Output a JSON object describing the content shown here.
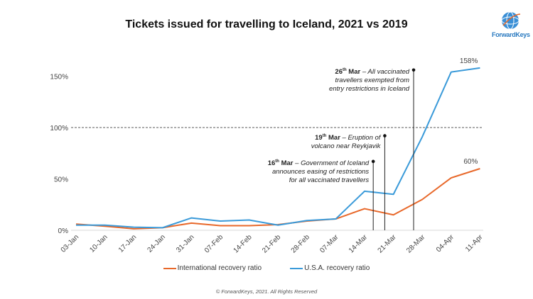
{
  "chart_data": {
    "type": "line",
    "title": "Tickets issued for travelling to Iceland, 2021 vs 2019",
    "xlabel": "",
    "ylabel": "",
    "ylim": [
      0,
      160
    ],
    "yticks": [
      "0%",
      "50%",
      "100%",
      "150%"
    ],
    "ytick_values": [
      0,
      50,
      100,
      150
    ],
    "reference_line": {
      "value": 100,
      "style": "dashed"
    },
    "categories": [
      "03-Jan",
      "10-Jan",
      "17-Jan",
      "24-Jan",
      "31-Jan",
      "07-Feb",
      "14-Feb",
      "21-Feb",
      "28-Feb",
      "07-Mar",
      "14-Mar",
      "21-Mar",
      "28-Mar",
      "04-Apr",
      "11-Apr"
    ],
    "series": [
      {
        "name": "International recovery ratio",
        "color": "#e8682a",
        "values": [
          6,
          4,
          1.5,
          2.5,
          7,
          4.5,
          4.5,
          5.5,
          9,
          11,
          21,
          15,
          30,
          51,
          60
        ],
        "end_label": "60%"
      },
      {
        "name": "U.S.A. recovery ratio",
        "color": "#3a9ad9",
        "values": [
          5,
          5,
          3,
          2.5,
          12,
          9,
          10,
          5,
          9.5,
          11,
          38,
          35,
          91,
          154,
          158
        ],
        "end_label": "158%"
      }
    ],
    "annotations": [
      {
        "date_index": 10.3,
        "marker_value": 67,
        "day": "16",
        "sup": "th",
        "month": "Mar",
        "text_lines": [
          "– Government of Iceland",
          "announces easing of restrictions",
          "for all vaccinated travellers"
        ]
      },
      {
        "date_index": 10.7,
        "marker_value": 92,
        "day": "19",
        "sup": "th",
        "month": "Mar",
        "text_lines": [
          "– Eruption of",
          "volcano near Reykjavik"
        ]
      },
      {
        "date_index": 11.7,
        "marker_value": 156,
        "day": "26",
        "sup": "th",
        "month": "Mar",
        "text_lines": [
          "– All vaccinated",
          "travellers exempted from",
          "entry restrictions in Iceland"
        ]
      }
    ],
    "legend_position": "bottom",
    "grid": false
  },
  "logo": {
    "text": "ForwardKeys"
  },
  "footer": "© ForwardKeys, 2021. All Rights Reserved"
}
